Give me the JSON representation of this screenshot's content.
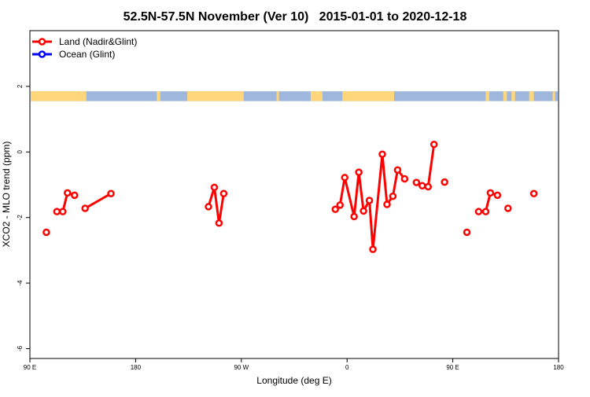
{
  "chart_data": {
    "type": "line",
    "title": "52.5N-57.5N November (Ver 10)   2015-01-01 to 2020-12-18",
    "xlabel": "Longitude (deg E)",
    "ylabel": "XCO2 - MLO trend (ppm)",
    "xlim": [
      90,
      540
    ],
    "ylim": [
      -6.3,
      3.7
    ],
    "x_ticks": [
      {
        "value": 90,
        "label": "90 E"
      },
      {
        "value": 180,
        "label": "180"
      },
      {
        "value": 270,
        "label": "90 W"
      },
      {
        "value": 360,
        "label": "0"
      },
      {
        "value": 450,
        "label": "90 E"
      },
      {
        "value": 540,
        "label": "180"
      }
    ],
    "y_ticks": [
      {
        "value": -6,
        "label": "-6"
      },
      {
        "value": -4,
        "label": "-4"
      },
      {
        "value": -2,
        "label": "-2"
      },
      {
        "value": 0,
        "label": "0"
      },
      {
        "value": 2,
        "label": "2"
      }
    ],
    "legend_position": "top-left",
    "land_ocean_strip": {
      "y_range": [
        1.55,
        1.85
      ],
      "ocean_color": "#9fb7dd",
      "land_color": "#ffd77a",
      "land_segments": [
        [
          90,
          138
        ],
        [
          198,
          201
        ],
        [
          224,
          272
        ],
        [
          300,
          302
        ],
        [
          329,
          339
        ],
        [
          356,
          400
        ],
        [
          478,
          481
        ],
        [
          493,
          496
        ],
        [
          500,
          503
        ],
        [
          515,
          519
        ],
        [
          535,
          537
        ]
      ]
    },
    "series": [
      {
        "name": "Land (Nadir&Glint)",
        "color": "#ff0000",
        "segments": [
          [
            [
              104,
              -2.45
            ]
          ],
          [
            [
              113,
              -1.82
            ],
            [
              118,
              -1.82
            ],
            [
              122,
              -1.25
            ],
            [
              128,
              -1.32
            ]
          ],
          [
            [
              137,
              -1.72
            ],
            [
              159,
              -1.27
            ]
          ],
          [
            [
              242,
              -1.67
            ],
            [
              247,
              -1.08
            ],
            [
              251,
              -2.17
            ],
            [
              255,
              -1.27
            ]
          ],
          [
            [
              350,
              -1.75
            ],
            [
              354,
              -1.62
            ],
            [
              358,
              -0.78
            ],
            [
              366,
              -1.97
            ],
            [
              370,
              -0.62
            ],
            [
              374,
              -1.8
            ],
            [
              379,
              -1.48
            ],
            [
              382,
              -2.97
            ],
            [
              390,
              -0.07
            ],
            [
              394,
              -1.6
            ],
            [
              399,
              -1.35
            ],
            [
              403,
              -0.55
            ],
            [
              409,
              -0.82
            ]
          ],
          [
            [
              419,
              -0.93
            ],
            [
              424,
              -1.03
            ],
            [
              429,
              -1.06
            ],
            [
              434,
              0.23
            ]
          ],
          [
            [
              443,
              -0.92
            ]
          ],
          [
            [
              462,
              -2.45
            ]
          ],
          [
            [
              472,
              -1.82
            ],
            [
              478,
              -1.82
            ],
            [
              482,
              -1.25
            ],
            [
              488,
              -1.32
            ]
          ],
          [
            [
              497,
              -1.72
            ]
          ],
          [
            [
              519,
              -1.27
            ]
          ]
        ]
      },
      {
        "name": "Ocean (Glint)",
        "color": "#0000ff",
        "segments": []
      }
    ]
  }
}
